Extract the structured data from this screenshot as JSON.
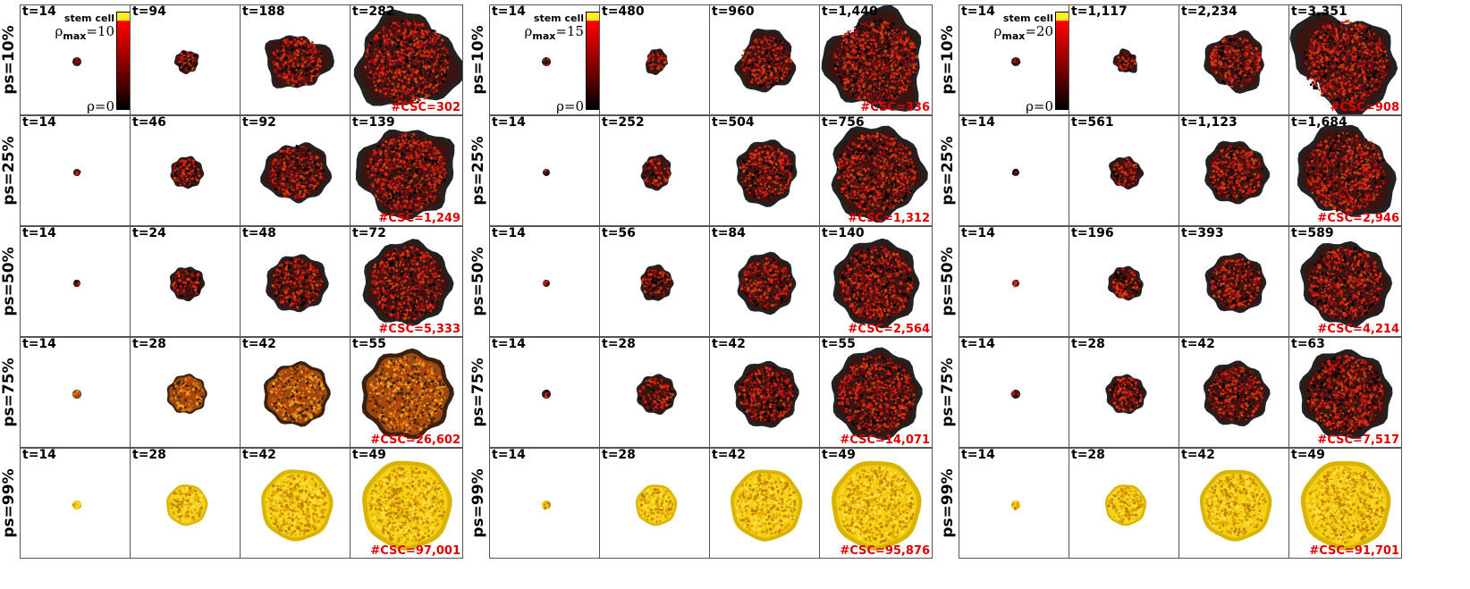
{
  "colorbar": {
    "stem_label": "stem cell",
    "rho_symbol": "ρ",
    "max_sub": "max",
    "min_label": "ρ=0",
    "colors": [
      "#ffee22",
      "#ff0000",
      "#a00000",
      "#000000"
    ]
  },
  "blocks": [
    {
      "rho_max_value": "=10",
      "rows": [
        {
          "label": "ps=10%",
          "times": [
            "t=14",
            "t=94",
            "t=188",
            "t=282"
          ],
          "csc": "#CSC=302"
        },
        {
          "label": "ps=25%",
          "times": [
            "t=14",
            "t=46",
            "t=92",
            "t=139"
          ],
          "csc": "#CSC=1,249"
        },
        {
          "label": "ps=50%",
          "times": [
            "t=14",
            "t=24",
            "t=48",
            "t=72"
          ],
          "csc": "#CSC=5,333"
        },
        {
          "label": "ps=75%",
          "times": [
            "t=14",
            "t=28",
            "t=42",
            "t=55"
          ],
          "csc": "#CSC=26,602"
        },
        {
          "label": "ps=99%",
          "times": [
            "t=14",
            "t=28",
            "t=42",
            "t=49"
          ],
          "csc": "#CSC=97,001"
        }
      ]
    },
    {
      "rho_max_value": "=15",
      "rows": [
        {
          "label": "ps=10%",
          "times": [
            "t=14",
            "t=480",
            "t=960",
            "t=1,440"
          ],
          "csc": "#CSC=336"
        },
        {
          "label": "ps=25%",
          "times": [
            "t=14",
            "t=252",
            "t=504",
            "t=756"
          ],
          "csc": "#CSC=1,312"
        },
        {
          "label": "ps=50%",
          "times": [
            "t=14",
            "t=56",
            "t=84",
            "t=140"
          ],
          "csc": "#CSC=2,564"
        },
        {
          "label": "ps=75%",
          "times": [
            "t=14",
            "t=28",
            "t=42",
            "t=55"
          ],
          "csc": "#CSC=14,071"
        },
        {
          "label": "ps=99%",
          "times": [
            "t=14",
            "t=28",
            "t=42",
            "t=49"
          ],
          "csc": "#CSC=95,876"
        }
      ]
    },
    {
      "rho_max_value": "=20",
      "rows": [
        {
          "label": "ps=10%",
          "times": [
            "t=14",
            "t=1,117",
            "t=2,234",
            "t=3,351"
          ],
          "csc": "#CSC=908"
        },
        {
          "label": "ps=25%",
          "times": [
            "t=14",
            "t=561",
            "t=1,123",
            "t=1,684"
          ],
          "csc": "#CSC=2,946"
        },
        {
          "label": "ps=50%",
          "times": [
            "t=14",
            "t=196",
            "t=393",
            "t=589"
          ],
          "csc": "#CSC=4,214"
        },
        {
          "label": "ps=75%",
          "times": [
            "t=14",
            "t=28",
            "t=42",
            "t=63"
          ],
          "csc": "#CSC=7,517"
        },
        {
          "label": "ps=99%",
          "times": [
            "t=14",
            "t=28",
            "t=42",
            "t=49"
          ],
          "csc": "#CSC=91,701"
        }
      ]
    }
  ]
}
